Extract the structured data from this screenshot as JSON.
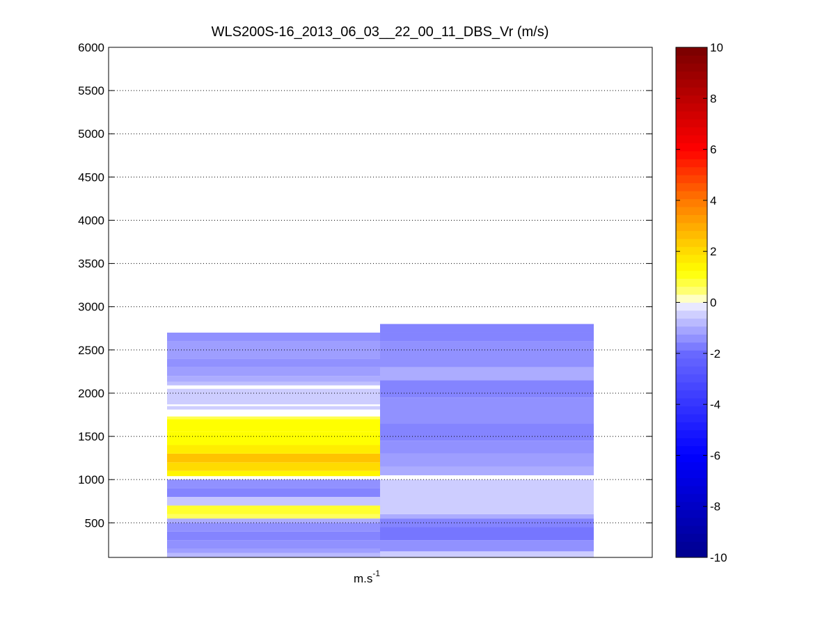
{
  "chart_data": {
    "type": "heatmap",
    "title": "WLS200S-16_2013_06_03__22_00_11_DBS_Vr (m/s)",
    "xlabel_base": "m.s",
    "xlabel_exponent": "-1",
    "ylabel": "",
    "ylim": [
      100,
      6000
    ],
    "yticks": [
      500,
      1000,
      1500,
      2000,
      2500,
      3000,
      3500,
      4000,
      4500,
      5000,
      5500,
      6000
    ],
    "grid": "horizontal-dotted",
    "colorbar": {
      "range": [
        -10,
        10
      ],
      "ticks": [
        -10,
        -8,
        -6,
        -4,
        -2,
        0,
        2,
        4,
        6,
        8,
        10
      ],
      "position": "right"
    },
    "columns": [
      {
        "cells": [
          {
            "y0": 100,
            "y1": 150,
            "v": -0.8
          },
          {
            "y0": 150,
            "y1": 200,
            "v": -1.2
          },
          {
            "y0": 200,
            "y1": 300,
            "v": -1.4
          },
          {
            "y0": 300,
            "y1": 400,
            "v": -1.6
          },
          {
            "y0": 400,
            "y1": 500,
            "v": -1.4
          },
          {
            "y0": 500,
            "y1": 550,
            "v": -1.0
          },
          {
            "y0": 550,
            "y1": 600,
            "v": 0.6
          },
          {
            "y0": 600,
            "y1": 700,
            "v": 0.9
          },
          {
            "y0": 700,
            "y1": 800,
            "v": -0.6
          },
          {
            "y0": 800,
            "y1": 900,
            "v": -1.6
          },
          {
            "y0": 900,
            "y1": 1000,
            "v": -1.4
          },
          {
            "y0": 1040,
            "y1": 1100,
            "v": 1.4
          },
          {
            "y0": 1100,
            "y1": 1200,
            "v": 2.0
          },
          {
            "y0": 1200,
            "y1": 1300,
            "v": 2.5
          },
          {
            "y0": 1300,
            "y1": 1400,
            "v": 1.6
          },
          {
            "y0": 1400,
            "y1": 1550,
            "v": 1.2
          },
          {
            "y0": 1550,
            "y1": 1700,
            "v": 1.2
          },
          {
            "y0": 1700,
            "y1": 1730,
            "v": 0.7
          },
          {
            "y0": 1810,
            "y1": 1850,
            "v": -0.5
          },
          {
            "y0": 1870,
            "y1": 2050,
            "v": -0.5
          },
          {
            "y0": 2090,
            "y1": 2130,
            "v": -0.7
          },
          {
            "y0": 2130,
            "y1": 2200,
            "v": -1.0
          },
          {
            "y0": 2200,
            "y1": 2300,
            "v": -1.2
          },
          {
            "y0": 2300,
            "y1": 2400,
            "v": -1.4
          },
          {
            "y0": 2400,
            "y1": 2600,
            "v": -1.2
          },
          {
            "y0": 2600,
            "y1": 2700,
            "v": -1.4
          }
        ]
      },
      {
        "cells": [
          {
            "y0": 100,
            "y1": 170,
            "v": -0.5
          },
          {
            "y0": 170,
            "y1": 300,
            "v": -1.4
          },
          {
            "y0": 300,
            "y1": 450,
            "v": -1.8
          },
          {
            "y0": 450,
            "y1": 550,
            "v": -1.6
          },
          {
            "y0": 550,
            "y1": 600,
            "v": -1.0
          },
          {
            "y0": 600,
            "y1": 1000,
            "v": -0.5
          },
          {
            "y0": 1050,
            "y1": 1150,
            "v": -1.0
          },
          {
            "y0": 1150,
            "y1": 1300,
            "v": -1.2
          },
          {
            "y0": 1300,
            "y1": 1450,
            "v": -1.4
          },
          {
            "y0": 1450,
            "y1": 1650,
            "v": -1.6
          },
          {
            "y0": 1650,
            "y1": 1950,
            "v": -1.4
          },
          {
            "y0": 1950,
            "y1": 2150,
            "v": -1.6
          },
          {
            "y0": 2150,
            "y1": 2300,
            "v": -1.0
          },
          {
            "y0": 2300,
            "y1": 2600,
            "v": -1.4
          },
          {
            "y0": 2600,
            "y1": 2700,
            "v": -1.6
          },
          {
            "y0": 2700,
            "y1": 2800,
            "v": -1.6
          }
        ]
      }
    ]
  }
}
